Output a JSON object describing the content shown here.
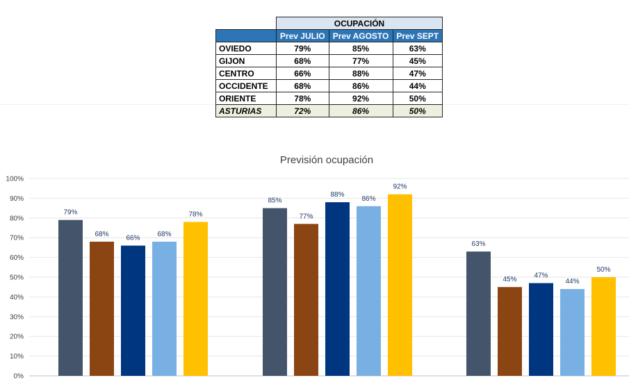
{
  "table": {
    "group_header": "OCUPACIÓN",
    "columns": [
      "Prev JULIO",
      "Prev AGOSTO",
      "Prev SEPT"
    ],
    "rows": [
      {
        "name": "OVIEDO",
        "values": [
          "79%",
          "85%",
          "63%"
        ]
      },
      {
        "name": "GIJON",
        "values": [
          "68%",
          "77%",
          "45%"
        ]
      },
      {
        "name": "CENTRO",
        "values": [
          "66%",
          "88%",
          "47%"
        ]
      },
      {
        "name": "OCCIDENTE",
        "values": [
          "68%",
          "86%",
          "44%"
        ]
      },
      {
        "name": "ORIENTE",
        "values": [
          "78%",
          "92%",
          "50%"
        ]
      },
      {
        "name": "ASTURIAS",
        "values": [
          "72%",
          "86%",
          "50%"
        ]
      }
    ],
    "colors": {
      "header_blue": "#2e75b6",
      "group_bg": "#dbe5f1",
      "total_bg": "#ebf1de"
    }
  },
  "chart_data": {
    "type": "bar",
    "title": "Previsión ocupación",
    "categories": [
      "",
      "",
      ""
    ],
    "series": [
      {
        "color": "#44546a",
        "values": [
          79,
          85,
          63
        ]
      },
      {
        "color": "#8b4513",
        "values": [
          68,
          77,
          45
        ]
      },
      {
        "color": "#003580",
        "values": [
          66,
          88,
          47
        ]
      },
      {
        "color": "#79b0e3",
        "values": [
          68,
          86,
          44
        ]
      },
      {
        "color": "#ffc000",
        "values": [
          78,
          92,
          50
        ]
      }
    ],
    "ylim": [
      0,
      100
    ],
    "yticks": [
      "0%",
      "10%",
      "20%",
      "30%",
      "40%",
      "50%",
      "60%",
      "70%",
      "80%",
      "90%",
      "100%"
    ],
    "value_suffix": "%",
    "grid": true,
    "legend": "none"
  }
}
